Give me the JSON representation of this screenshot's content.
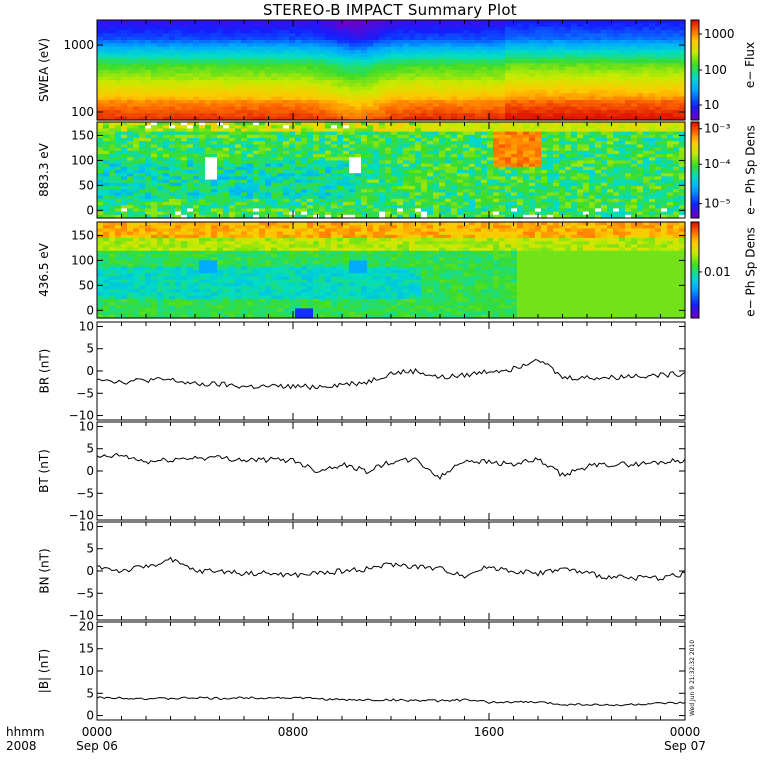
{
  "title": "STEREO-B IMPACT Summary Plot",
  "panels": [
    {
      "id": "swea",
      "ylabel": "SWEA (eV)",
      "yticks": [
        "1000",
        "100"
      ],
      "cbar_label": "e− Flux",
      "cbar_ticks": [
        "1000",
        "100",
        "10"
      ]
    },
    {
      "id": "pad883",
      "ylabel": "883.3 eV",
      "yticks": [
        "150",
        "100",
        "50",
        "0"
      ],
      "cbar_label": "e− Ph Sp Dens",
      "cbar_ticks": [
        "10⁻³",
        "10⁻⁴",
        "10⁻⁵"
      ]
    },
    {
      "id": "pad436",
      "ylabel": "436.5 eV",
      "yticks": [
        "150",
        "100",
        "50",
        "0"
      ],
      "cbar_label": "e− Ph Sp Dens",
      "cbar_ticks": [
        "0.01"
      ]
    },
    {
      "id": "br",
      "ylabel": "B_R (nT)",
      "yticks": [
        "10",
        "5",
        "0",
        "−5",
        "−10"
      ],
      "ylim": [
        -11,
        11
      ]
    },
    {
      "id": "bt",
      "ylabel": "B_T (nT)",
      "yticks": [
        "10",
        "5",
        "0",
        "−5",
        "−10"
      ],
      "ylim": [
        -11,
        11
      ]
    },
    {
      "id": "bn",
      "ylabel": "B_N (nT)",
      "yticks": [
        "10",
        "5",
        "0",
        "−5",
        "−10"
      ],
      "ylim": [
        -11,
        11
      ]
    },
    {
      "id": "bmag",
      "ylabel": "|B| (nT)",
      "yticks": [
        "20",
        "15",
        "10",
        "5",
        "0"
      ],
      "ylim": [
        -1,
        21
      ]
    }
  ],
  "xaxis": {
    "ticks": [
      "0000",
      "0800",
      "1600",
      "0000"
    ],
    "dates": [
      "Sep 06",
      "Sep 07"
    ],
    "label_top": "hhmm",
    "label_bottom": "2008"
  },
  "stamp": "Wed Jun 9 21:32:32 2010",
  "chart_data": {
    "type": "line",
    "x_unit": "hours since 2008-09-06 00:00",
    "x": [
      0,
      1,
      2,
      3,
      4,
      5,
      6,
      7,
      8,
      9,
      10,
      11,
      12,
      13,
      14,
      15,
      16,
      17,
      18,
      19,
      20,
      21,
      22,
      23,
      24
    ],
    "series": [
      {
        "name": "B_R (nT)",
        "values": [
          -1.5,
          -2.5,
          -2,
          -2,
          -3,
          -3,
          -3.5,
          -3.5,
          -3.5,
          -3.5,
          -3,
          -2.5,
          -0.5,
          0,
          -1.5,
          -1,
          0,
          0.5,
          3,
          -1.5,
          -1.5,
          -1.5,
          -1,
          -1,
          -0.5
        ]
      },
      {
        "name": "B_T (nT)",
        "values": [
          3,
          3.5,
          2,
          2.5,
          3,
          3,
          2.5,
          2.5,
          2.5,
          0,
          1.5,
          0,
          2,
          2.5,
          -1.5,
          2.5,
          2,
          1.5,
          2.5,
          -1,
          1,
          1.5,
          1.5,
          2,
          2.5
        ]
      },
      {
        "name": "B_N (nT)",
        "values": [
          1,
          0,
          1,
          2.5,
          0,
          0,
          -0.5,
          -0.5,
          -1,
          -0.5,
          0,
          0.5,
          1.5,
          1,
          0.5,
          -1,
          1,
          0,
          -0.5,
          0.5,
          -0.5,
          -1.5,
          -1.5,
          -1.5,
          -0.5
        ]
      },
      {
        "name": "|B| (nT)",
        "values": [
          4,
          4,
          3.8,
          3.8,
          4,
          3.8,
          4,
          4,
          4,
          3.8,
          3.5,
          3.5,
          3.5,
          3.4,
          3.3,
          3.5,
          3,
          3,
          3,
          2.5,
          2.5,
          2.3,
          2.5,
          2.7,
          2.8
        ]
      }
    ],
    "spectrograms": [
      {
        "name": "SWEA e− Flux",
        "y_range_eV": [
          90,
          2200
        ],
        "colorbar": [
          10,
          2000
        ]
      },
      {
        "name": "883.3 eV pitch angle",
        "y_range_deg": [
          0,
          180
        ]
      },
      {
        "name": "436.5 eV pitch angle",
        "y_range_deg": [
          0,
          180
        ]
      }
    ]
  }
}
